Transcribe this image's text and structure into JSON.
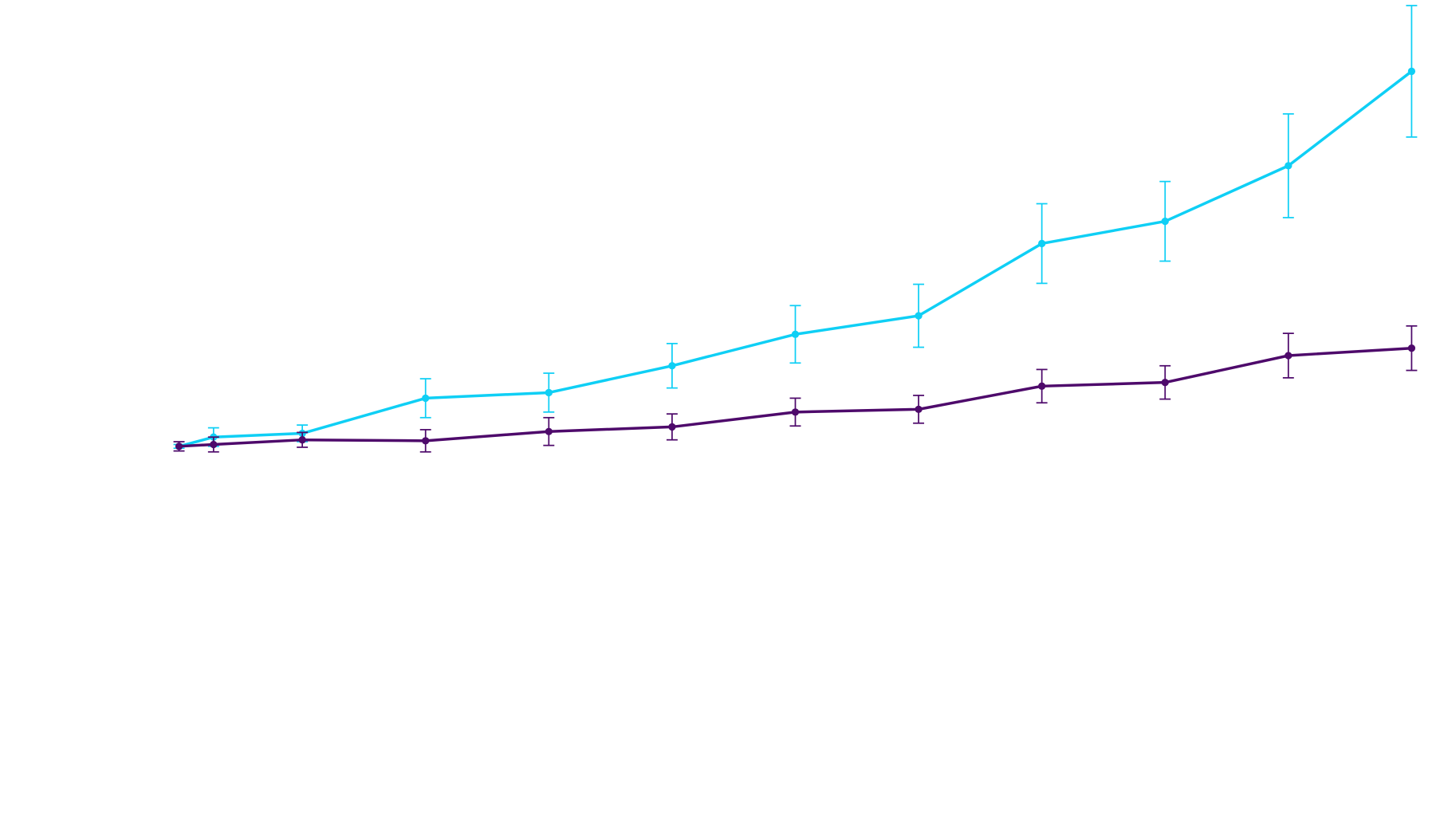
{
  "chart_data": {
    "type": "line",
    "title": "",
    "xlabel": "",
    "ylabel": "",
    "axes_visible": false,
    "grid": false,
    "legend": "none",
    "xlim": [
      0,
      10
    ],
    "ylim": [
      -41,
      49
    ],
    "x": [
      0,
      0.28,
      1,
      2,
      3,
      4,
      5,
      6,
      7,
      8,
      9,
      10
    ],
    "series": [
      {
        "color": "#0FCFF5",
        "marker": "circle",
        "error_bars": true,
        "values": [
          0,
          1.0,
          1.4,
          5.2,
          5.8,
          8.7,
          12.1,
          14.1,
          21.9,
          24.3,
          30.3,
          40.5
        ],
        "errors": [
          0.2,
          1.0,
          0.9,
          2.1,
          2.1,
          2.4,
          3.1,
          3.4,
          4.3,
          4.3,
          5.6,
          7.1
        ]
      },
      {
        "color": "#4E0A6B",
        "marker": "circle",
        "error_bars": true,
        "values": [
          0,
          0.2,
          0.7,
          0.6,
          1.6,
          2.1,
          3.7,
          4.0,
          6.5,
          6.9,
          9.8,
          10.6
        ],
        "errors": [
          0.5,
          0.8,
          0.8,
          1.2,
          1.5,
          1.4,
          1.5,
          1.5,
          1.8,
          1.8,
          2.4,
          2.4
        ]
      }
    ]
  }
}
